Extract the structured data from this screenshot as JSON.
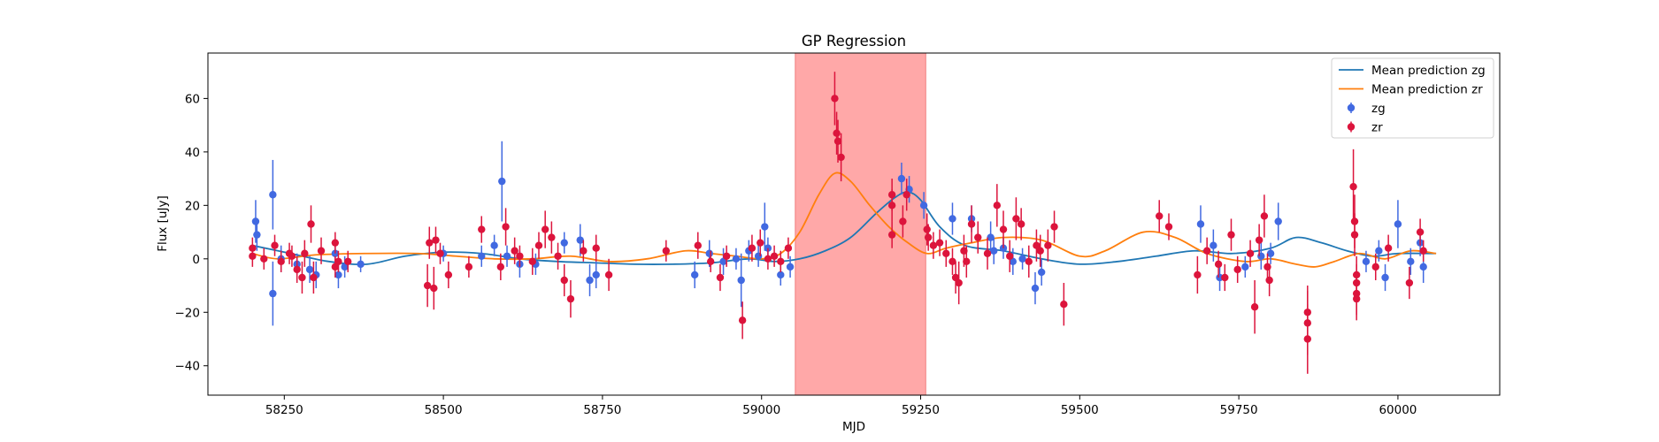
{
  "chart_data": {
    "type": "scatter",
    "title": "GP Regression",
    "xlabel": "MJD",
    "ylabel": "Flux [uJy]",
    "xlim": [
      58130,
      60160
    ],
    "ylim": [
      -51,
      77
    ],
    "xticks": [
      58250,
      58500,
      58750,
      59000,
      59250,
      59500,
      59750,
      60000
    ],
    "yticks": [
      -40,
      -20,
      0,
      20,
      40,
      60
    ],
    "highlight_span": {
      "x0": 59053,
      "x1": 59258,
      "color": "#ff9999"
    },
    "legend": {
      "position": "upper right",
      "entries": [
        {
          "label": "Mean prediction zg",
          "kind": "line",
          "color": "#1f77b4"
        },
        {
          "label": "Mean prediction zr",
          "kind": "line",
          "color": "#ff7f0e"
        },
        {
          "label": "zg",
          "kind": "errorbar",
          "color": "#4169e1"
        },
        {
          "label": "zr",
          "kind": "errorbar",
          "color": "#dc143c"
        }
      ]
    },
    "series": [
      {
        "name": "Mean prediction zg",
        "kind": "line",
        "color": "#1f77b4",
        "x": [
          58200,
          58260,
          58320,
          58380,
          58440,
          58500,
          58560,
          58620,
          58680,
          58740,
          58800,
          58860,
          58920,
          58980,
          59020,
          59060,
          59100,
          59140,
          59180,
          59210,
          59230,
          59250,
          59280,
          59320,
          59380,
          59440,
          59500,
          59560,
          59620,
          59680,
          59740,
          59800,
          59840,
          59880,
          59920,
          59960,
          60000,
          60060
        ],
        "y": [
          5,
          2,
          -1,
          -2,
          1,
          2.5,
          2,
          0,
          -1,
          -1.5,
          -2,
          -2,
          -1.5,
          0,
          -1,
          0,
          3,
          8,
          17,
          23,
          25,
          22,
          12,
          5,
          3,
          0,
          -2,
          -1,
          1,
          3,
          2,
          4,
          8,
          6,
          3,
          1,
          2,
          2
        ]
      },
      {
        "name": "Mean prediction zr",
        "kind": "line",
        "color": "#ff7f0e",
        "x": [
          58200,
          58240,
          58300,
          58380,
          58460,
          58520,
          58580,
          58640,
          58700,
          58760,
          58820,
          58880,
          58920,
          58960,
          59000,
          59030,
          59060,
          59090,
          59115,
          59140,
          59170,
          59200,
          59230,
          59260,
          59290,
          59330,
          59380,
          59440,
          59500,
          59540,
          59600,
          59650,
          59700,
          59760,
          59800,
          59840,
          59870,
          59900,
          59940,
          59980,
          60020,
          60060
        ],
        "y": [
          2,
          0,
          1.5,
          2,
          2,
          1,
          0,
          0,
          1,
          -1,
          0,
          3,
          2,
          1,
          0,
          2,
          10,
          24,
          32,
          29,
          20,
          12,
          6,
          2,
          4,
          6,
          8,
          7,
          1,
          3,
          10,
          8,
          2,
          -1,
          0,
          -2,
          -3,
          -1,
          2,
          0,
          3,
          2
        ]
      },
      {
        "name": "zg",
        "kind": "errorbar",
        "color": "#4169e1",
        "points": [
          [
            58205,
            14,
            8
          ],
          [
            58207,
            9,
            6
          ],
          [
            58232,
            24,
            13
          ],
          [
            58232,
            -13,
            12
          ],
          [
            58245,
            0,
            5
          ],
          [
            58270,
            -2,
            4
          ],
          [
            58290,
            -4,
            5
          ],
          [
            58300,
            -6,
            5
          ],
          [
            58330,
            2,
            5
          ],
          [
            58335,
            -6,
            5
          ],
          [
            58345,
            -3,
            4
          ],
          [
            58370,
            -2,
            3
          ],
          [
            58500,
            2,
            3
          ],
          [
            58560,
            1,
            4
          ],
          [
            58580,
            5,
            4
          ],
          [
            58592,
            29,
            15
          ],
          [
            58600,
            1,
            4
          ],
          [
            58620,
            -2,
            5
          ],
          [
            58645,
            -2,
            4
          ],
          [
            58690,
            6,
            4
          ],
          [
            58715,
            7,
            6
          ],
          [
            58730,
            -8,
            6
          ],
          [
            58740,
            -6,
            5
          ],
          [
            58895,
            -6,
            5
          ],
          [
            58918,
            2,
            5
          ],
          [
            58940,
            -1,
            5
          ],
          [
            58960,
            0,
            4
          ],
          [
            58968,
            -8,
            10
          ],
          [
            58980,
            3,
            4
          ],
          [
            58995,
            1,
            4
          ],
          [
            59005,
            12,
            9
          ],
          [
            59010,
            4,
            4
          ],
          [
            59030,
            -6,
            4
          ],
          [
            59045,
            -3,
            4
          ],
          [
            59220,
            30,
            6
          ],
          [
            59232,
            26,
            5
          ],
          [
            59255,
            20,
            5
          ],
          [
            59300,
            15,
            6
          ],
          [
            59330,
            15,
            5
          ],
          [
            59360,
            8,
            6
          ],
          [
            59365,
            3,
            5
          ],
          [
            59380,
            4,
            4
          ],
          [
            59395,
            -1,
            5
          ],
          [
            59410,
            0,
            4
          ],
          [
            59430,
            -11,
            6
          ],
          [
            59440,
            -5,
            5
          ],
          [
            59690,
            13,
            7
          ],
          [
            59710,
            5,
            6
          ],
          [
            59720,
            -7,
            5
          ],
          [
            59760,
            -3,
            4
          ],
          [
            59785,
            1,
            5
          ],
          [
            59800,
            2,
            4
          ],
          [
            59812,
            14,
            7
          ],
          [
            59950,
            -1,
            4
          ],
          [
            59970,
            3,
            4
          ],
          [
            59980,
            -7,
            5
          ],
          [
            60000,
            13,
            9
          ],
          [
            60020,
            -1,
            5
          ],
          [
            60035,
            6,
            5
          ],
          [
            60040,
            -3,
            6
          ]
        ]
      },
      {
        "name": "zr",
        "kind": "errorbar",
        "color": "#dc143c",
        "points": [
          [
            58200,
            4,
            4
          ],
          [
            58200,
            1,
            4
          ],
          [
            58218,
            0,
            4
          ],
          [
            58235,
            5,
            4
          ],
          [
            58245,
            -1,
            4
          ],
          [
            58258,
            2,
            4
          ],
          [
            58262,
            1,
            4
          ],
          [
            58270,
            -4,
            5
          ],
          [
            58278,
            -7,
            6
          ],
          [
            58282,
            2,
            5
          ],
          [
            58292,
            13,
            7
          ],
          [
            58296,
            -7,
            6
          ],
          [
            58308,
            3,
            5
          ],
          [
            58330,
            6,
            4
          ],
          [
            58330,
            -3,
            4
          ],
          [
            58335,
            -1,
            4
          ],
          [
            58350,
            -1,
            4
          ],
          [
            58475,
            -10,
            8
          ],
          [
            58478,
            6,
            6
          ],
          [
            58485,
            -11,
            8
          ],
          [
            58488,
            7,
            5
          ],
          [
            58495,
            2,
            4
          ],
          [
            58508,
            -6,
            5
          ],
          [
            58540,
            -3,
            4
          ],
          [
            58560,
            11,
            5
          ],
          [
            58590,
            -3,
            5
          ],
          [
            58598,
            12,
            7
          ],
          [
            58612,
            3,
            5
          ],
          [
            58620,
            1,
            4
          ],
          [
            58640,
            -1,
            5
          ],
          [
            58650,
            5,
            5
          ],
          [
            58660,
            11,
            7
          ],
          [
            58670,
            8,
            6
          ],
          [
            58680,
            1,
            5
          ],
          [
            58690,
            -8,
            6
          ],
          [
            58700,
            -15,
            7
          ],
          [
            58720,
            3,
            4
          ],
          [
            58740,
            4,
            5
          ],
          [
            58760,
            -6,
            6
          ],
          [
            58850,
            3,
            4
          ],
          [
            58900,
            5,
            5
          ],
          [
            58920,
            -1,
            4
          ],
          [
            58935,
            -7,
            5
          ],
          [
            58945,
            1,
            4
          ],
          [
            58970,
            -23,
            7
          ],
          [
            58985,
            4,
            5
          ],
          [
            58998,
            6,
            5
          ],
          [
            59010,
            0,
            4
          ],
          [
            59020,
            1,
            4
          ],
          [
            59030,
            -1,
            4
          ],
          [
            59042,
            4,
            4
          ],
          [
            59115,
            60,
            10
          ],
          [
            59118,
            47,
            8
          ],
          [
            59120,
            44,
            8
          ],
          [
            59125,
            38,
            9
          ],
          [
            59205,
            24,
            6
          ],
          [
            59205,
            20,
            6
          ],
          [
            59205,
            9,
            5
          ],
          [
            59222,
            14,
            6
          ],
          [
            59228,
            24,
            6
          ],
          [
            59260,
            11,
            6
          ],
          [
            59262,
            8,
            5
          ],
          [
            59270,
            5,
            5
          ],
          [
            59280,
            6,
            5
          ],
          [
            59290,
            2,
            5
          ],
          [
            59300,
            -1,
            5
          ],
          [
            59305,
            -7,
            6
          ],
          [
            59310,
            -9,
            8
          ],
          [
            59318,
            3,
            6
          ],
          [
            59322,
            -1,
            6
          ],
          [
            59330,
            13,
            7
          ],
          [
            59340,
            8,
            6
          ],
          [
            59355,
            2,
            6
          ],
          [
            59370,
            20,
            8
          ],
          [
            59380,
            11,
            7
          ],
          [
            59390,
            1,
            6
          ],
          [
            59400,
            15,
            8
          ],
          [
            59408,
            13,
            6
          ],
          [
            59420,
            -1,
            6
          ],
          [
            59432,
            5,
            6
          ],
          [
            59438,
            3,
            6
          ],
          [
            59450,
            5,
            6
          ],
          [
            59460,
            12,
            6
          ],
          [
            59475,
            -17,
            8
          ],
          [
            59625,
            16,
            6
          ],
          [
            59640,
            12,
            5
          ],
          [
            59685,
            -6,
            7
          ],
          [
            59700,
            3,
            5
          ],
          [
            59718,
            -2,
            5
          ],
          [
            59728,
            -7,
            5
          ],
          [
            59738,
            9,
            6
          ],
          [
            59748,
            -4,
            5
          ],
          [
            59768,
            2,
            5
          ],
          [
            59775,
            -18,
            10
          ],
          [
            59782,
            7,
            6
          ],
          [
            59790,
            16,
            8
          ],
          [
            59795,
            -3,
            5
          ],
          [
            59798,
            -8,
            6
          ],
          [
            59858,
            -20,
            10
          ],
          [
            59858,
            -24,
            12
          ],
          [
            59858,
            -30,
            13
          ],
          [
            59930,
            27,
            14
          ],
          [
            59932,
            14,
            10
          ],
          [
            59932,
            9,
            8
          ],
          [
            59935,
            -6,
            7
          ],
          [
            59935,
            -9,
            7
          ],
          [
            59935,
            -13,
            8
          ],
          [
            59935,
            -15,
            8
          ],
          [
            59965,
            -3,
            5
          ],
          [
            59985,
            4,
            5
          ],
          [
            60018,
            -9,
            6
          ],
          [
            60035,
            10,
            5
          ],
          [
            60040,
            3,
            4
          ]
        ]
      }
    ]
  }
}
